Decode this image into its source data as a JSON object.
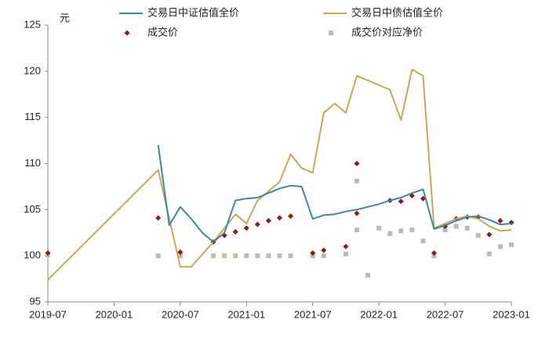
{
  "chart_data": {
    "type": "line-scatter",
    "y_unit": "元",
    "xlim": [
      "2019-07",
      "2023-01"
    ],
    "xticks": [
      "2019-07",
      "2020-01",
      "2020-07",
      "2021-01",
      "2021-07",
      "2022-01",
      "2022-07",
      "2023-01"
    ],
    "ylim": [
      95,
      125
    ],
    "yticks": [
      95,
      100,
      105,
      110,
      115,
      120,
      125
    ],
    "grid": false,
    "legend": "top",
    "series": [
      {
        "name": "交易日中证估值全价",
        "kind": "line",
        "color": "#3b8aa3",
        "x": [
          "2020-05",
          "2020-06",
          "2020-07",
          "2020-08",
          "2020-09",
          "2020-10",
          "2020-11",
          "2020-12",
          "2021-01",
          "2021-02",
          "2021-03",
          "2021-04",
          "2021-05",
          "2021-06",
          "2021-07",
          "2021-08",
          "2021-09",
          "2021-10",
          "2021-11",
          "2021-12",
          "2022-01",
          "2022-02",
          "2022-03",
          "2022-04",
          "2022-05",
          "2022-06",
          "2022-07",
          "2022-08",
          "2022-09",
          "2022-10",
          "2022-11",
          "2022-12",
          "2023-01"
        ],
        "values": [
          112,
          103.3,
          105.3,
          104,
          102.5,
          101.5,
          102.5,
          106,
          106.2,
          106.3,
          106.8,
          107.3,
          107.6,
          107.5,
          104,
          104.4,
          104.5,
          104.8,
          105,
          105.3,
          105.6,
          106,
          106.3,
          106.8,
          107.2,
          102.9,
          103.3,
          103.8,
          104.2,
          104.3,
          103.9,
          103.4,
          103.5
        ]
      },
      {
        "name": "交易日中债估值全价",
        "kind": "line",
        "color": "#c9a85c",
        "x": [
          "2019-07",
          "2020-05",
          "2020-07",
          "2020-08",
          "2020-10",
          "2020-11",
          "2020-12",
          "2021-01",
          "2021-02",
          "2021-03",
          "2021-04",
          "2021-05",
          "2021-06",
          "2021-07",
          "2021-08",
          "2021-09",
          "2021-10",
          "2021-11",
          "2021-12",
          "2022-01",
          "2022-02",
          "2022-03",
          "2022-04",
          "2022-05",
          "2022-06",
          "2022-07",
          "2022-08",
          "2022-09",
          "2022-10",
          "2022-11",
          "2022-12",
          "2023-01"
        ],
        "values": [
          97.4,
          109.3,
          98.8,
          98.8,
          101.5,
          103,
          104.5,
          103.5,
          106,
          107,
          108,
          111,
          109.5,
          109,
          115.5,
          116.5,
          115.5,
          119.5,
          119,
          118.5,
          118,
          114.7,
          120.2,
          119.5,
          103,
          103.5,
          104,
          104.3,
          104,
          103.2,
          102.7,
          102.8
        ]
      },
      {
        "name": "成交价",
        "kind": "diamond",
        "color": "#8b1a1a",
        "x": [
          "2019-07",
          "2020-05",
          "2020-07",
          "2020-10",
          "2020-11",
          "2020-12",
          "2021-01",
          "2021-02",
          "2021-03",
          "2021-04",
          "2021-05",
          "2021-07",
          "2021-08",
          "2021-10",
          "2021-11",
          "2021-11",
          "2022-02",
          "2022-03",
          "2022-04",
          "2022-05",
          "2022-06",
          "2022-07",
          "2022-08",
          "2022-09",
          "2022-10",
          "2022-11",
          "2022-12",
          "2023-01"
        ],
        "values": [
          100.3,
          104.1,
          100.4,
          101.5,
          102.2,
          102.6,
          103,
          103.4,
          103.8,
          104.1,
          104.3,
          100.3,
          100.6,
          101,
          104.6,
          110,
          106,
          105.9,
          106.5,
          106.2,
          100.3,
          103.2,
          104,
          104.2,
          104.2,
          102.3,
          103.8,
          103.6
        ]
      },
      {
        "name": "成交价对应净价",
        "kind": "square",
        "color": "#bdbcb0",
        "x": [
          "2019-07",
          "2020-05",
          "2020-07",
          "2020-10",
          "2020-11",
          "2020-12",
          "2021-01",
          "2021-02",
          "2021-03",
          "2021-04",
          "2021-05",
          "2021-07",
          "2021-08",
          "2021-10",
          "2021-11",
          "2021-11",
          "2021-12",
          "2022-01",
          "2022-02",
          "2022-03",
          "2022-04",
          "2022-05",
          "2022-06",
          "2022-07",
          "2022-08",
          "2022-09",
          "2022-10",
          "2022-11",
          "2022-12",
          "2023-01"
        ],
        "values": [
          100.1,
          100,
          100,
          100,
          100,
          100,
          100,
          100,
          100,
          100,
          100,
          100,
          100,
          100.2,
          102.8,
          108.1,
          97.9,
          103,
          102.4,
          102.7,
          102.8,
          101.6,
          100,
          102.8,
          103.2,
          103,
          102.2,
          100.2,
          101,
          101.2
        ]
      }
    ]
  }
}
